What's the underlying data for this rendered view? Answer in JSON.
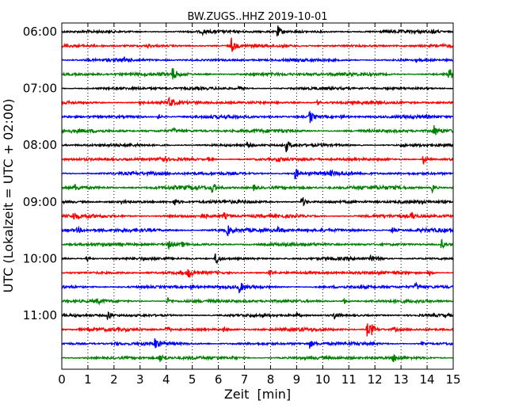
{
  "chart_data": {
    "type": "line",
    "title": "BW.ZUGS..HHZ 2019-10-01",
    "xlabel": "Zeit  [min]",
    "ylabel": "UTC (Lokalzeit = UTC + 02:00)",
    "xlim": [
      0,
      15
    ],
    "x_ticks": [
      "0",
      "1",
      "2",
      "3",
      "4",
      "5",
      "6",
      "7",
      "8",
      "9",
      "10",
      "11",
      "12",
      "13",
      "14",
      "15"
    ],
    "y_ticks": [
      "06:00",
      "07:00",
      "08:00",
      "09:00",
      "10:00",
      "11:00"
    ],
    "grid_x": true,
    "trace_colors": [
      "#000000",
      "#ff0000",
      "#0000ff",
      "#008000"
    ],
    "traces": [
      {
        "time": "06:00",
        "noise": 0.18,
        "events": [
          {
            "t": 8.25,
            "a": 1.0
          },
          {
            "t": 14.2,
            "a": 0.35
          },
          {
            "t": 5.4,
            "a": 0.25
          }
        ]
      },
      {
        "time": "06:15",
        "noise": 0.18,
        "events": [
          {
            "t": 6.5,
            "a": 1.1
          },
          {
            "t": 3.3,
            "a": 0.25
          }
        ]
      },
      {
        "time": "06:30",
        "noise": 0.18,
        "events": [
          {
            "t": 2.4,
            "a": 0.3
          },
          {
            "t": 13.6,
            "a": 0.3
          }
        ]
      },
      {
        "time": "06:45",
        "noise": 0.22,
        "events": [
          {
            "t": 4.25,
            "a": 0.9
          },
          {
            "t": 14.85,
            "a": 0.9
          }
        ]
      },
      {
        "time": "07:00",
        "noise": 0.18,
        "events": [
          {
            "t": 6.8,
            "a": 0.3
          }
        ]
      },
      {
        "time": "07:15",
        "noise": 0.2,
        "events": [
          {
            "t": 4.1,
            "a": 0.9
          },
          {
            "t": 9.8,
            "a": 0.35
          },
          {
            "t": 3.0,
            "a": 0.25
          }
        ]
      },
      {
        "time": "07:30",
        "noise": 0.2,
        "events": [
          {
            "t": 9.5,
            "a": 1.0
          },
          {
            "t": 10.7,
            "a": 0.3
          },
          {
            "t": 3.7,
            "a": 0.3
          }
        ]
      },
      {
        "time": "07:45",
        "noise": 0.22,
        "events": [
          {
            "t": 14.25,
            "a": 0.9
          },
          {
            "t": 4.25,
            "a": 0.4
          }
        ]
      },
      {
        "time": "08:00",
        "noise": 0.18,
        "events": [
          {
            "t": 8.6,
            "a": 0.9
          },
          {
            "t": 7.1,
            "a": 0.3
          },
          {
            "t": 13.0,
            "a": 0.25
          }
        ]
      },
      {
        "time": "08:15",
        "noise": 0.2,
        "events": [
          {
            "t": 3.75,
            "a": 0.7
          },
          {
            "t": 13.85,
            "a": 0.75
          },
          {
            "t": 5.6,
            "a": 0.3
          },
          {
            "t": 8.3,
            "a": 0.25
          }
        ]
      },
      {
        "time": "08:30",
        "noise": 0.22,
        "events": [
          {
            "t": 8.95,
            "a": 0.9
          },
          {
            "t": 10.3,
            "a": 0.25
          }
        ]
      },
      {
        "time": "08:45",
        "noise": 0.24,
        "events": [
          {
            "t": 0.5,
            "a": 0.45
          },
          {
            "t": 5.75,
            "a": 0.8
          },
          {
            "t": 7.35,
            "a": 0.35
          },
          {
            "t": 14.2,
            "a": 0.6
          }
        ]
      },
      {
        "time": "09:00",
        "noise": 0.2,
        "events": [
          {
            "t": 4.3,
            "a": 0.6
          },
          {
            "t": 9.2,
            "a": 0.9
          },
          {
            "t": 2.3,
            "a": 0.25
          }
        ]
      },
      {
        "time": "09:15",
        "noise": 0.22,
        "events": [
          {
            "t": 0.45,
            "a": 0.5
          },
          {
            "t": 6.2,
            "a": 0.5
          },
          {
            "t": 13.4,
            "a": 0.5
          },
          {
            "t": 5.4,
            "a": 0.35
          }
        ]
      },
      {
        "time": "09:30",
        "noise": 0.24,
        "events": [
          {
            "t": 6.35,
            "a": 0.7
          },
          {
            "t": 8.3,
            "a": 0.4
          },
          {
            "t": 12.65,
            "a": 0.5
          },
          {
            "t": 0.6,
            "a": 0.35
          }
        ]
      },
      {
        "time": "09:45",
        "noise": 0.2,
        "events": [
          {
            "t": 4.1,
            "a": 0.55
          },
          {
            "t": 14.55,
            "a": 0.7
          },
          {
            "t": 4.6,
            "a": 0.3
          }
        ]
      },
      {
        "time": "10:00",
        "noise": 0.18,
        "events": [
          {
            "t": 5.9,
            "a": 1.0
          },
          {
            "t": 0.95,
            "a": 0.4
          },
          {
            "t": 11.85,
            "a": 0.45
          },
          {
            "t": 12.15,
            "a": 0.45
          }
        ]
      },
      {
        "time": "10:15",
        "noise": 0.2,
        "events": [
          {
            "t": 4.85,
            "a": 0.7
          },
          {
            "t": 7.95,
            "a": 0.6
          },
          {
            "t": 14.05,
            "a": 0.45
          }
        ]
      },
      {
        "time": "10:30",
        "noise": 0.2,
        "events": [
          {
            "t": 6.8,
            "a": 0.8
          },
          {
            "t": 4.95,
            "a": 0.35
          },
          {
            "t": 13.55,
            "a": 0.55
          }
        ]
      },
      {
        "time": "10:45",
        "noise": 0.2,
        "events": [
          {
            "t": 1.35,
            "a": 0.35
          },
          {
            "t": 4.05,
            "a": 0.5
          },
          {
            "t": 10.8,
            "a": 0.45
          }
        ]
      },
      {
        "time": "11:00",
        "noise": 0.18,
        "events": [
          {
            "t": 1.75,
            "a": 0.8
          },
          {
            "t": 10.45,
            "a": 0.6
          },
          {
            "t": 9.0,
            "a": 0.3
          }
        ]
      },
      {
        "time": "11:15",
        "noise": 0.2,
        "events": [
          {
            "t": 4.0,
            "a": 0.6
          },
          {
            "t": 11.7,
            "a": 1.0
          },
          {
            "t": 11.85,
            "a": 0.8
          },
          {
            "t": 12.7,
            "a": 0.4
          },
          {
            "t": 6.2,
            "a": 0.3
          }
        ]
      },
      {
        "time": "11:30",
        "noise": 0.2,
        "events": [
          {
            "t": 3.55,
            "a": 0.8
          },
          {
            "t": 9.5,
            "a": 0.6
          },
          {
            "t": 2.05,
            "a": 0.35
          },
          {
            "t": 13.8,
            "a": 0.3
          }
        ]
      },
      {
        "time": "11:45",
        "noise": 0.2,
        "events": [
          {
            "t": 3.75,
            "a": 0.7
          },
          {
            "t": 12.7,
            "a": 0.55
          },
          {
            "t": 6.5,
            "a": 0.3
          }
        ]
      }
    ]
  }
}
